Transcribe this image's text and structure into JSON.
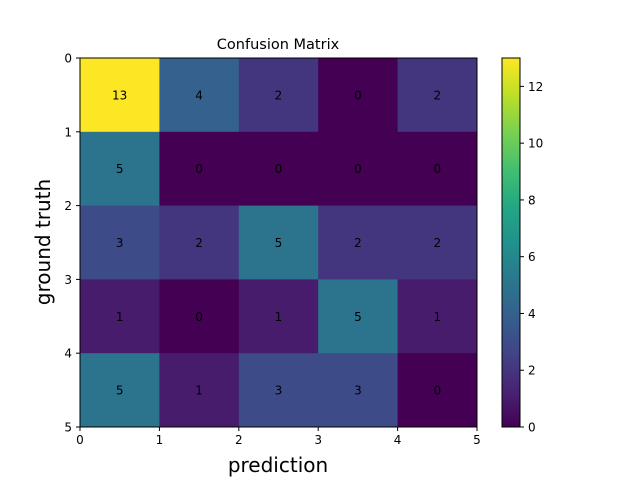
{
  "chart_data": {
    "type": "heatmap",
    "title": "Confusion Matrix",
    "xlabel": "prediction",
    "ylabel": "ground truth",
    "x_ticks": [
      "0",
      "1",
      "2",
      "3",
      "4",
      "5"
    ],
    "y_ticks": [
      "0",
      "1",
      "2",
      "3",
      "4",
      "5"
    ],
    "xlim": [
      0,
      5
    ],
    "ylim": [
      5,
      0
    ],
    "matrix": [
      [
        13,
        4,
        2,
        0,
        2
      ],
      [
        5,
        0,
        0,
        0,
        0
      ],
      [
        3,
        2,
        5,
        2,
        2
      ],
      [
        1,
        0,
        1,
        5,
        1
      ],
      [
        5,
        1,
        3,
        3,
        0
      ]
    ],
    "colormap": "viridis",
    "vmin": 0,
    "vmax": 13,
    "colorbar_ticks": [
      "0",
      "2",
      "4",
      "6",
      "8",
      "10",
      "12"
    ],
    "grid": false
  }
}
